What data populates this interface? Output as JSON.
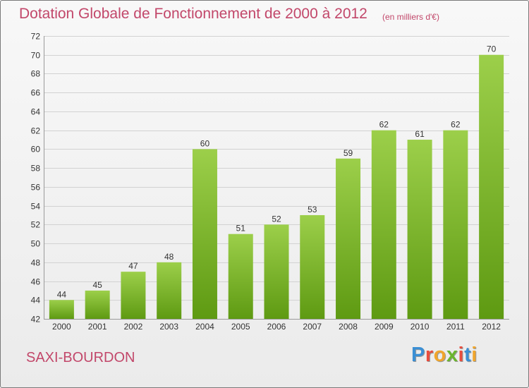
{
  "header": {
    "title": "Dotation Globale de Fonctionnement de 2000 à 2012",
    "subtitle": "(en milliers d'€)"
  },
  "commune": "SAXI-BOURDON",
  "logo": {
    "text": "Proxiti",
    "letter_colors": [
      "#3b8fd4",
      "#e84c3d",
      "#f0a52b",
      "#6bb52e",
      "#e84c3d",
      "#3b8fd4",
      "#f0a52b"
    ]
  },
  "chart_data": {
    "type": "bar",
    "categories": [
      "2000",
      "2001",
      "2002",
      "2003",
      "2004",
      "2005",
      "2006",
      "2007",
      "2008",
      "2009",
      "2010",
      "2011",
      "2012"
    ],
    "values": [
      44,
      45,
      47,
      48,
      60,
      51,
      52,
      53,
      59,
      62,
      61,
      62,
      70
    ],
    "ylim": [
      42,
      72
    ],
    "yticks": [
      42,
      44,
      46,
      48,
      50,
      52,
      54,
      56,
      58,
      60,
      62,
      64,
      66,
      68,
      70,
      72
    ],
    "grid": true,
    "legend": "none",
    "bar_color_light": "#9ccf4a",
    "bar_color_dark": "#5e9a12"
  }
}
